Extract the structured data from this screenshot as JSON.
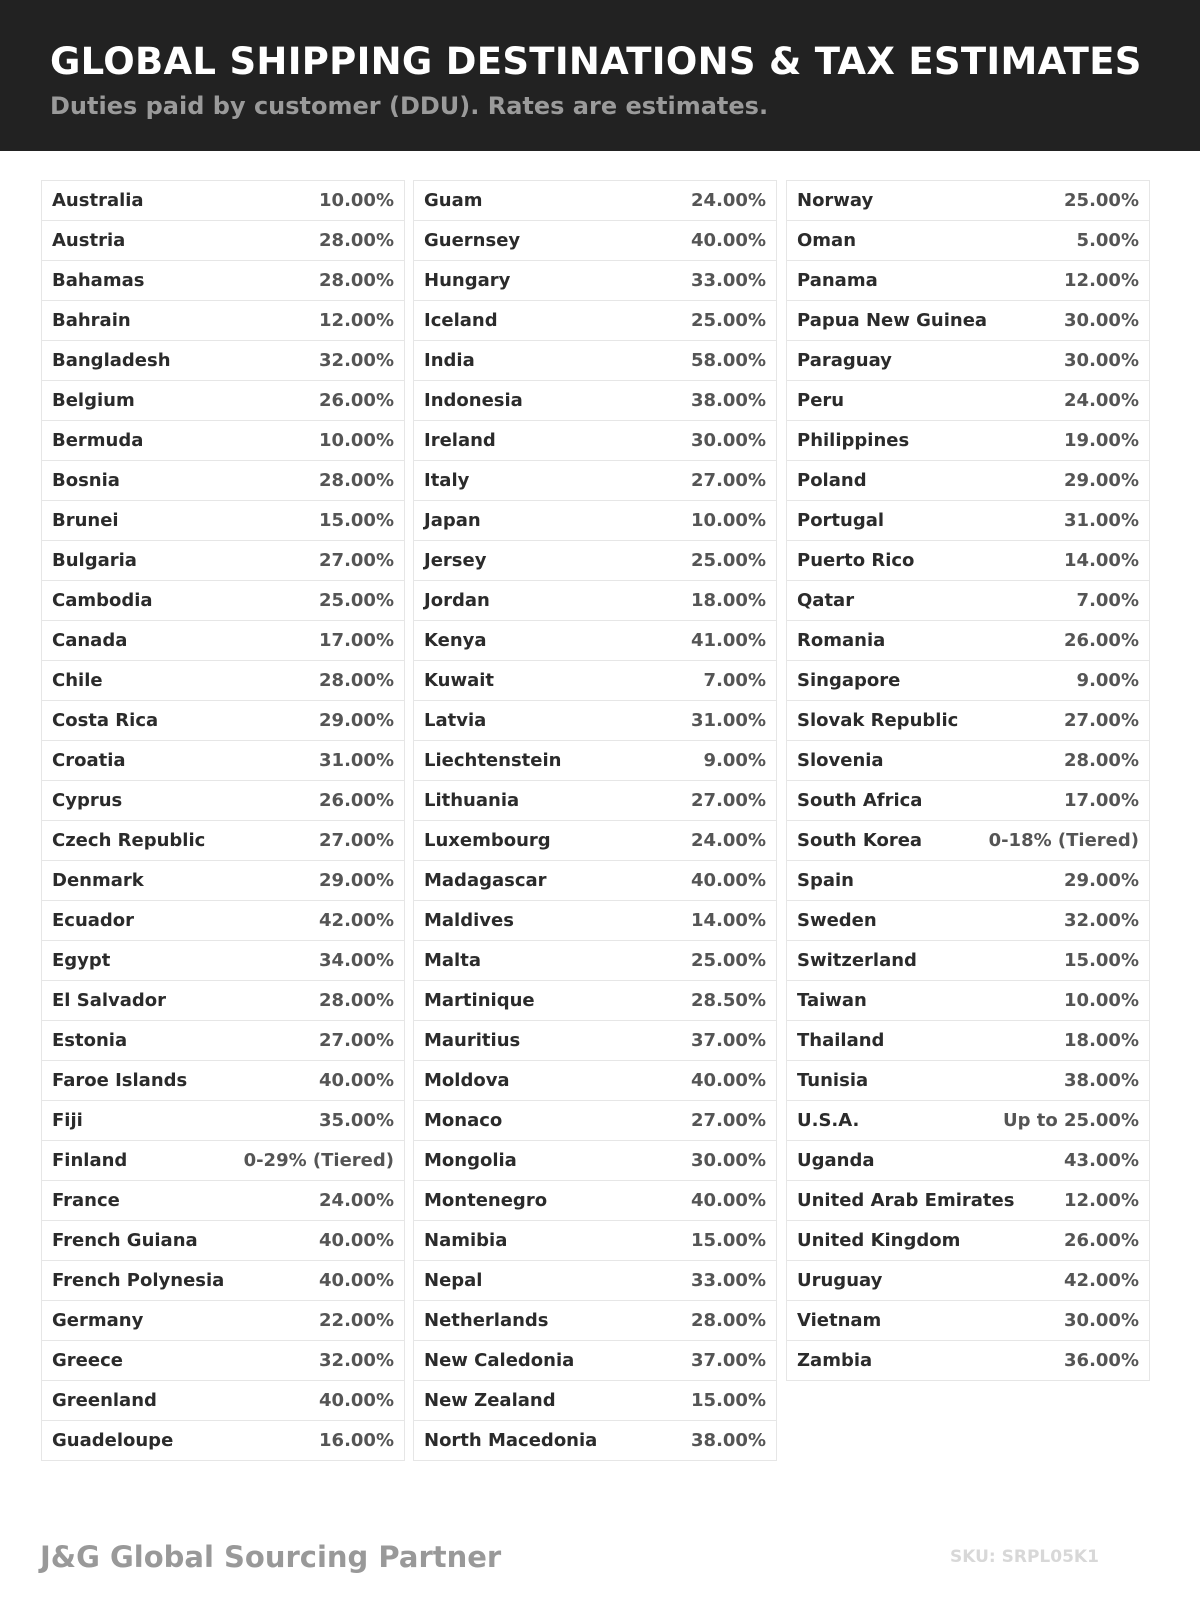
{
  "header": {
    "title": "GLOBAL SHIPPING DESTINATIONS & TAX ESTIMATES",
    "subtitle": "Duties paid by customer (DDU). Rates are estimates."
  },
  "columns": [
    [
      [
        "Australia",
        "10.00%"
      ],
      [
        "Austria",
        "28.00%"
      ],
      [
        "Bahamas",
        "28.00%"
      ],
      [
        "Bahrain",
        "12.00%"
      ],
      [
        "Bangladesh",
        "32.00%"
      ],
      [
        "Belgium",
        "26.00%"
      ],
      [
        "Bermuda",
        "10.00%"
      ],
      [
        "Bosnia",
        "28.00%"
      ],
      [
        "Brunei",
        "15.00%"
      ],
      [
        "Bulgaria",
        "27.00%"
      ],
      [
        "Cambodia",
        "25.00%"
      ],
      [
        "Canada",
        "17.00%"
      ],
      [
        "Chile",
        "28.00%"
      ],
      [
        "Costa Rica",
        "29.00%"
      ],
      [
        "Croatia",
        "31.00%"
      ],
      [
        "Cyprus",
        "26.00%"
      ],
      [
        "Czech Republic",
        "27.00%"
      ],
      [
        "Denmark",
        "29.00%"
      ],
      [
        "Ecuador",
        "42.00%"
      ],
      [
        "Egypt",
        "34.00%"
      ],
      [
        "El Salvador",
        "28.00%"
      ],
      [
        "Estonia",
        "27.00%"
      ],
      [
        "Faroe Islands",
        "40.00%"
      ],
      [
        "Fiji",
        "35.00%"
      ],
      [
        "Finland",
        "0-29% (Tiered)"
      ],
      [
        "France",
        "24.00%"
      ],
      [
        "French Guiana",
        "40.00%"
      ],
      [
        "French Polynesia",
        "40.00%"
      ],
      [
        "Germany",
        "22.00%"
      ],
      [
        "Greece",
        "32.00%"
      ],
      [
        "Greenland",
        "40.00%"
      ],
      [
        "Guadeloupe",
        "16.00%"
      ]
    ],
    [
      [
        "Guam",
        "24.00%"
      ],
      [
        "Guernsey",
        "40.00%"
      ],
      [
        "Hungary",
        "33.00%"
      ],
      [
        "Iceland",
        "25.00%"
      ],
      [
        "India",
        "58.00%"
      ],
      [
        "Indonesia",
        "38.00%"
      ],
      [
        "Ireland",
        "30.00%"
      ],
      [
        "Italy",
        "27.00%"
      ],
      [
        "Japan",
        "10.00%"
      ],
      [
        "Jersey",
        "25.00%"
      ],
      [
        "Jordan",
        "18.00%"
      ],
      [
        "Kenya",
        "41.00%"
      ],
      [
        "Kuwait",
        "7.00%"
      ],
      [
        "Latvia",
        "31.00%"
      ],
      [
        "Liechtenstein",
        "9.00%"
      ],
      [
        "Lithuania",
        "27.00%"
      ],
      [
        "Luxembourg",
        "24.00%"
      ],
      [
        "Madagascar",
        "40.00%"
      ],
      [
        "Maldives",
        "14.00%"
      ],
      [
        "Malta",
        "25.00%"
      ],
      [
        "Martinique",
        "28.50%"
      ],
      [
        "Mauritius",
        "37.00%"
      ],
      [
        "Moldova",
        "40.00%"
      ],
      [
        "Monaco",
        "27.00%"
      ],
      [
        "Mongolia",
        "30.00%"
      ],
      [
        "Montenegro",
        "40.00%"
      ],
      [
        "Namibia",
        "15.00%"
      ],
      [
        "Nepal",
        "33.00%"
      ],
      [
        "Netherlands",
        "28.00%"
      ],
      [
        "New Caledonia",
        "37.00%"
      ],
      [
        "New Zealand",
        "15.00%"
      ],
      [
        "North Macedonia",
        "38.00%"
      ]
    ],
    [
      [
        "Norway",
        "25.00%"
      ],
      [
        "Oman",
        "5.00%"
      ],
      [
        "Panama",
        "12.00%"
      ],
      [
        "Papua New Guinea",
        "30.00%"
      ],
      [
        "Paraguay",
        "30.00%"
      ],
      [
        "Peru",
        "24.00%"
      ],
      [
        "Philippines",
        "19.00%"
      ],
      [
        "Poland",
        "29.00%"
      ],
      [
        "Portugal",
        "31.00%"
      ],
      [
        "Puerto Rico",
        "14.00%"
      ],
      [
        "Qatar",
        "7.00%"
      ],
      [
        "Romania",
        "26.00%"
      ],
      [
        "Singapore",
        "9.00%"
      ],
      [
        "Slovak Republic",
        "27.00%"
      ],
      [
        "Slovenia",
        "28.00%"
      ],
      [
        "South Africa",
        "17.00%"
      ],
      [
        "South Korea",
        "0-18% (Tiered)"
      ],
      [
        "Spain",
        "29.00%"
      ],
      [
        "Sweden",
        "32.00%"
      ],
      [
        "Switzerland",
        "15.00%"
      ],
      [
        "Taiwan",
        "10.00%"
      ],
      [
        "Thailand",
        "18.00%"
      ],
      [
        "Tunisia",
        "38.00%"
      ],
      [
        "U.S.A.",
        "Up to 25.00%"
      ],
      [
        "Uganda",
        "43.00%"
      ],
      [
        "United Arab Emirates",
        "12.00%"
      ],
      [
        "United Kingdom",
        "26.00%"
      ],
      [
        "Uruguay",
        "42.00%"
      ],
      [
        "Vietnam",
        "30.00%"
      ],
      [
        "Zambia",
        "36.00%"
      ]
    ]
  ],
  "footer": {
    "brand": "J&G Global Sourcing Partner",
    "sku": "SKU: SRPL05K1"
  }
}
